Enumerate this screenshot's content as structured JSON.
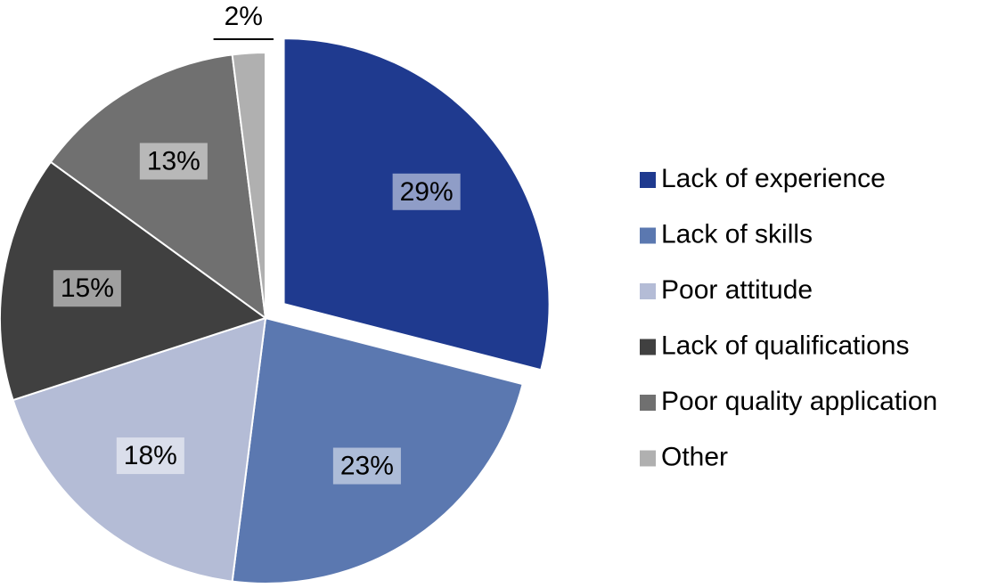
{
  "chart_data": {
    "type": "pie",
    "categories": [
      "Lack of experience",
      "Lack of skills",
      "Poor attitude",
      "Lack of qualifications",
      "Poor quality application",
      "Other"
    ],
    "values": [
      29,
      23,
      18,
      15,
      13,
      2
    ],
    "value_labels": [
      "29%",
      "23%",
      "18%",
      "15%",
      "13%",
      "2%"
    ],
    "colors": [
      "#1f3a8f",
      "#5b78b0",
      "#b4bcd6",
      "#404040",
      "#707070",
      "#b0b0b0"
    ],
    "legend": "right"
  }
}
